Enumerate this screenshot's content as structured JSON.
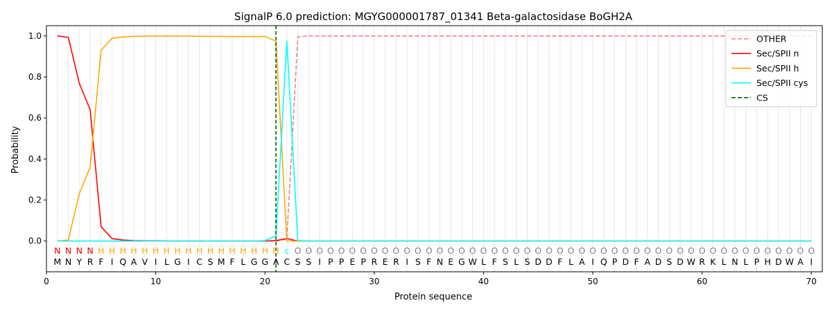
{
  "chart_data": {
    "type": "line",
    "title": "SignalP 6.0 prediction: MGYG000001787_01341 Beta-galactosidase BoGH2A",
    "xlabel": "Protein sequence",
    "ylabel": "Probability",
    "xlim": [
      0,
      71
    ],
    "ylim": [
      -0.15,
      1.05
    ],
    "xticks": [
      0,
      10,
      20,
      30,
      40,
      50,
      60,
      70
    ],
    "yticks": [
      0.0,
      0.2,
      0.4,
      0.6,
      0.8,
      1.0
    ],
    "xtick_labels": [
      "0",
      "10",
      "20",
      "30",
      "40",
      "50",
      "60",
      "70"
    ],
    "ytick_labels": [
      "0.0",
      "0.2",
      "0.4",
      "0.6",
      "0.8",
      "1.0"
    ],
    "grid": "vertical",
    "legend_position": "top-right",
    "sequence": [
      "M",
      "N",
      "Y",
      "R",
      "F",
      "I",
      "Q",
      "A",
      "V",
      "I",
      "L",
      "G",
      "I",
      "C",
      "S",
      "M",
      "F",
      "L",
      "G",
      "G",
      "A",
      "C",
      "S",
      "S",
      "I",
      "P",
      "P",
      "E",
      "P",
      "R",
      "E",
      "R",
      "I",
      "S",
      "F",
      "N",
      "E",
      "G",
      "W",
      "L",
      "F",
      "S",
      "L",
      "S",
      "D",
      "D",
      "F",
      "L",
      "A",
      "I",
      "Q",
      "P",
      "D",
      "F",
      "A",
      "D",
      "S",
      "D",
      "W",
      "R",
      "K",
      "L",
      "N",
      "L",
      "P",
      "H",
      "D",
      "W",
      "A",
      "I"
    ],
    "region_labels": [
      "N",
      "N",
      "N",
      "N",
      "H",
      "H",
      "H",
      "H",
      "H",
      "H",
      "H",
      "H",
      "H",
      "H",
      "H",
      "H",
      "H",
      "H",
      "H",
      "H",
      "H",
      "c",
      "O",
      "O",
      "O",
      "O",
      "O",
      "O",
      "O",
      "O",
      "O",
      "O",
      "O",
      "O",
      "O",
      "O",
      "O",
      "O",
      "O",
      "O",
      "O",
      "O",
      "O",
      "O",
      "O",
      "O",
      "O",
      "O",
      "O",
      "O",
      "O",
      "O",
      "O",
      "O",
      "O",
      "O",
      "O",
      "O",
      "O",
      "O",
      "O",
      "O",
      "O",
      "O",
      "O",
      "O",
      "O",
      "O",
      "O",
      "O"
    ],
    "region_colors": {
      "N": "#ff0000",
      "H": "#ffa500",
      "c": "#00ffff",
      "O": "#808080"
    },
    "cleavage_site": 21,
    "series": [
      {
        "name": "OTHER",
        "color": "#f08080",
        "dash": "dashed",
        "values": [
          0,
          0,
          0,
          0,
          0,
          0,
          0,
          0,
          0,
          0,
          0,
          0,
          0,
          0,
          0,
          0,
          0,
          0,
          0,
          0,
          0,
          0.01,
          0.995,
          1,
          1,
          1,
          1,
          1,
          1,
          1,
          1,
          1,
          1,
          1,
          1,
          1,
          1,
          1,
          1,
          1,
          1,
          1,
          1,
          1,
          1,
          1,
          1,
          1,
          1,
          1,
          1,
          1,
          1,
          1,
          1,
          1,
          1,
          1,
          1,
          1,
          1,
          1,
          1,
          1,
          1,
          1,
          1,
          1,
          1,
          1
        ]
      },
      {
        "name": "Sec/SPII n",
        "color": "#ff0000",
        "dash": "solid",
        "values": [
          1.0,
          0.993,
          0.77,
          0.64,
          0.07,
          0.012,
          0.005,
          0.002,
          0.001,
          0.001,
          0,
          0,
          0,
          0,
          0,
          0,
          0,
          0,
          0,
          0,
          0.002,
          0.012,
          0,
          0,
          0,
          0,
          0,
          0,
          0,
          0,
          0,
          0,
          0,
          0,
          0,
          0,
          0,
          0,
          0,
          0,
          0,
          0,
          0,
          0,
          0,
          0,
          0,
          0,
          0,
          0,
          0,
          0,
          0,
          0,
          0,
          0,
          0,
          0,
          0,
          0,
          0,
          0,
          0,
          0,
          0,
          0,
          0,
          0,
          0,
          0
        ]
      },
      {
        "name": "Sec/SPII h",
        "color": "#ffa500",
        "dash": "solid",
        "values": [
          0,
          0.005,
          0.23,
          0.36,
          0.93,
          0.988,
          0.995,
          0.998,
          0.999,
          0.999,
          0.999,
          0.999,
          0.999,
          0.998,
          0.998,
          0.998,
          0.997,
          0.997,
          0.997,
          0.997,
          0.975,
          0,
          0,
          0,
          0,
          0,
          0,
          0,
          0,
          0,
          0,
          0,
          0,
          0,
          0,
          0,
          0,
          0,
          0,
          0,
          0,
          0,
          0,
          0,
          0,
          0,
          0,
          0,
          0,
          0,
          0,
          0,
          0,
          0,
          0,
          0,
          0,
          0,
          0,
          0,
          0,
          0,
          0,
          0,
          0,
          0,
          0,
          0,
          0,
          0
        ]
      },
      {
        "name": "Sec/SPII cys",
        "color": "#00ffff",
        "dash": "solid",
        "values": [
          0,
          0,
          0,
          0,
          0,
          0,
          0,
          0,
          0,
          0,
          0,
          0,
          0,
          0,
          0,
          0,
          0,
          0,
          0,
          0.002,
          0.025,
          0.975,
          0.003,
          0,
          0,
          0,
          0,
          0,
          0,
          0,
          0,
          0,
          0,
          0,
          0,
          0,
          0,
          0,
          0,
          0,
          0,
          0,
          0,
          0,
          0,
          0,
          0,
          0,
          0,
          0,
          0,
          0,
          0,
          0,
          0,
          0,
          0,
          0,
          0,
          0,
          0,
          0,
          0,
          0,
          0,
          0,
          0,
          0,
          0,
          0
        ]
      },
      {
        "name": "CS",
        "color": "#006400",
        "dash": "dashed",
        "values": []
      }
    ]
  }
}
